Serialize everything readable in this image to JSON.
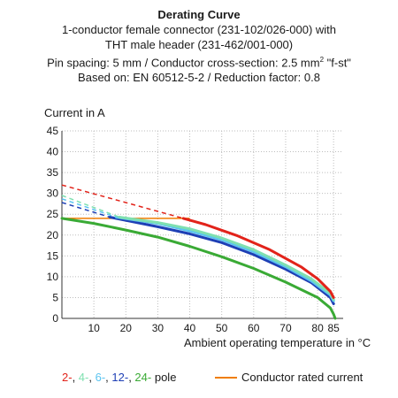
{
  "header": {
    "title": "Derating Curve",
    "line1": "1-conductor female connector (231-102/026-000) with",
    "line2": "THT male header (231-462/001-000)",
    "line3_prefix": "Pin spacing: 5 mm / Conductor cross-section: 2.5 mm",
    "line3_sup": "2",
    "line3_suffix": " \"f-st\"",
    "line4": "Based on: EN 60512-5-2 / Reduction factor: 0.8"
  },
  "legend": {
    "pole_items": [
      {
        "label": "2-",
        "color": "#e2231a"
      },
      {
        "label": "4-",
        "color": "#7fe0b0"
      },
      {
        "label": "6-",
        "color": "#5bc4f0"
      },
      {
        "label": "12-",
        "color": "#1e3fb5"
      },
      {
        "label": "24-",
        "color": "#3aaa35"
      }
    ],
    "pole_suffix": "pole",
    "rated_label": "Conductor rated current",
    "rated_color": "#f07d00"
  },
  "chart_data": {
    "type": "line",
    "title": "Derating Curve",
    "xlabel": "Ambient operating temperature in °C",
    "ylabel": "Current in A",
    "xlim": [
      0,
      88
    ],
    "ylim": [
      0,
      45
    ],
    "xticks": [
      10,
      20,
      30,
      40,
      50,
      60,
      70,
      80,
      85
    ],
    "yticks": [
      0,
      5,
      10,
      15,
      20,
      25,
      30,
      35,
      40,
      45
    ],
    "grid": true,
    "legend_position": "bottom",
    "rated_current": {
      "name": "Conductor rated current",
      "color": "#f07d00",
      "x": [
        0,
        40
      ],
      "y": [
        24,
        24
      ]
    },
    "series": [
      {
        "name": "2-",
        "color": "#e2231a",
        "dashed": {
          "x": [
            0,
            38
          ],
          "y": [
            32,
            24
          ]
        },
        "solid": {
          "x": [
            38,
            45,
            55,
            65,
            75,
            80,
            84,
            85
          ],
          "y": [
            24,
            22.5,
            19.8,
            16.5,
            12.3,
            9.5,
            6.5,
            5
          ]
        }
      },
      {
        "name": "4-",
        "color": "#7fe0b0",
        "dashed": {
          "x": [
            0,
            18
          ],
          "y": [
            29.5,
            24.3
          ]
        },
        "solid": {
          "x": [
            18,
            30,
            40,
            50,
            60,
            70,
            78,
            84,
            85
          ],
          "y": [
            24.3,
            23,
            21.5,
            19.3,
            16.5,
            12.8,
            9.5,
            6,
            4.5
          ]
        }
      },
      {
        "name": "6-",
        "color": "#5bc4f0",
        "dashed": {
          "x": [
            0,
            17
          ],
          "y": [
            28.7,
            24.3
          ]
        },
        "solid": {
          "x": [
            17,
            30,
            40,
            50,
            60,
            70,
            78,
            84,
            85
          ],
          "y": [
            24.3,
            22.8,
            21,
            18.9,
            16,
            12.4,
            9,
            5.6,
            4.2
          ]
        }
      },
      {
        "name": "12-",
        "color": "#1e3fb5",
        "dashed": {
          "x": [
            0,
            15
          ],
          "y": [
            27.8,
            24.3
          ]
        },
        "solid": {
          "x": [
            15,
            30,
            40,
            50,
            60,
            70,
            78,
            84,
            85
          ],
          "y": [
            24.3,
            22,
            20.3,
            18.2,
            15.3,
            11.8,
            8.6,
            5,
            3.5
          ]
        }
      },
      {
        "name": "24-",
        "color": "#3aaa35",
        "dashed": null,
        "solid": {
          "x": [
            0,
            10,
            20,
            30,
            40,
            50,
            60,
            70,
            80,
            84,
            85,
            85.5
          ],
          "y": [
            24,
            22.8,
            21.2,
            19.5,
            17.3,
            14.8,
            12,
            8.7,
            5,
            2.5,
            1,
            0
          ]
        }
      }
    ]
  }
}
